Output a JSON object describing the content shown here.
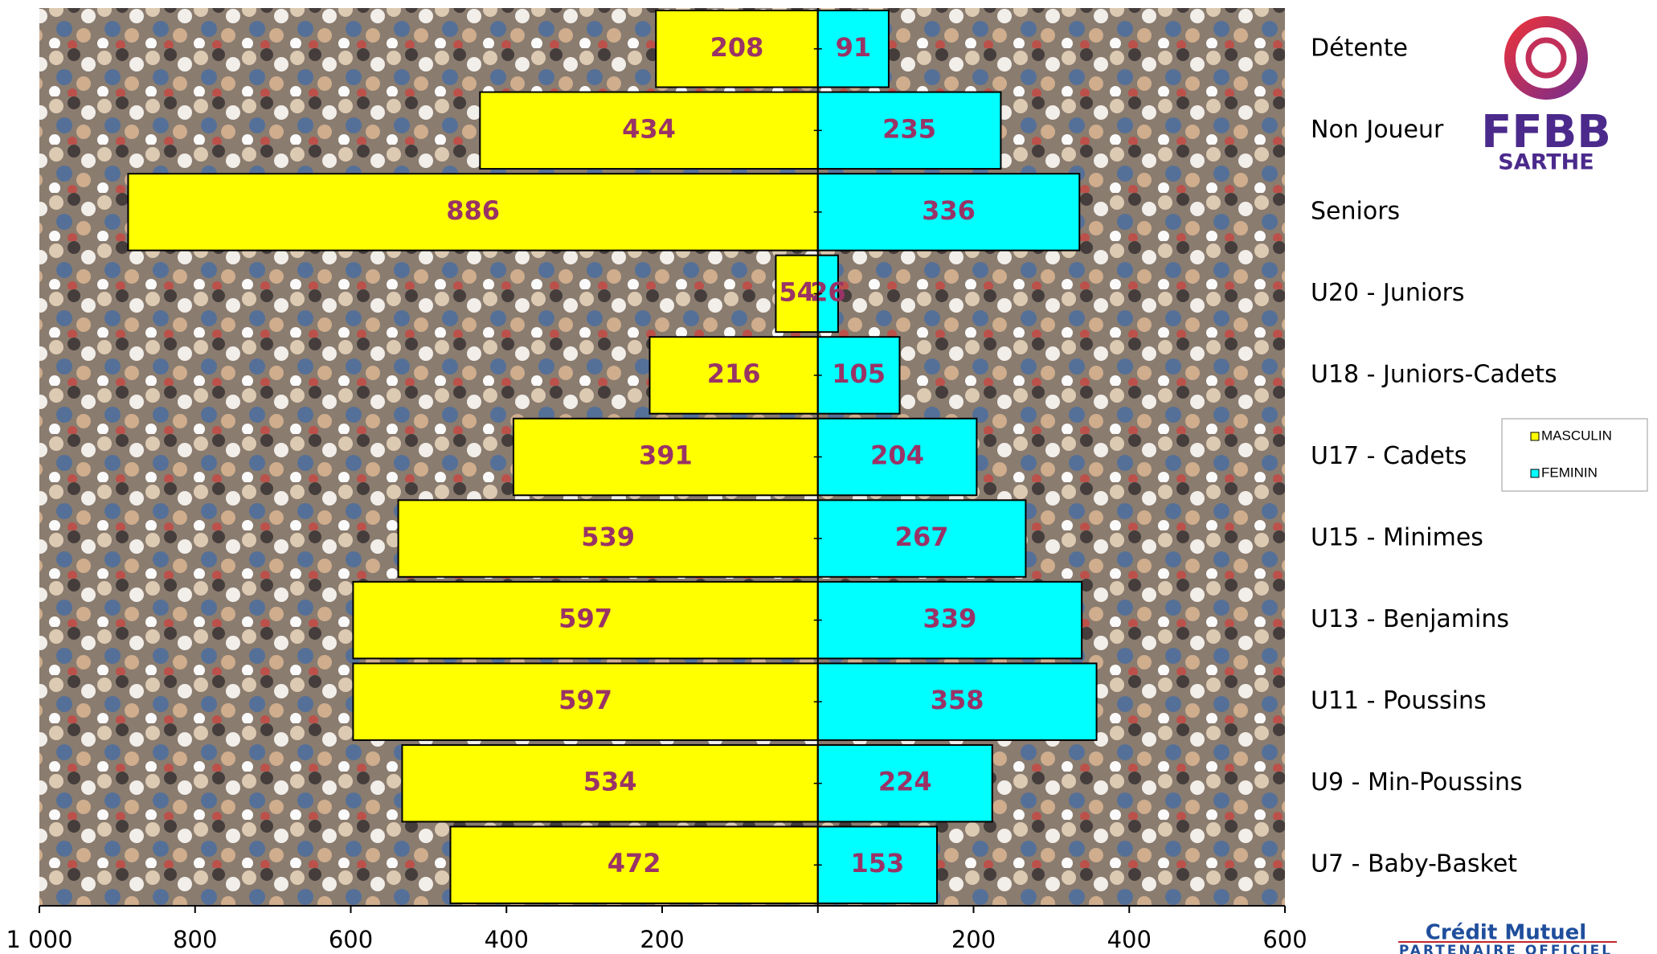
{
  "chart_data": {
    "type": "bar",
    "orientation": "butterfly",
    "categories": [
      "Détente",
      "Non Joueur",
      "Seniors",
      "U20 - Juniors",
      "U18 - Juniors-Cadets",
      "U17 - Cadets",
      "U15 - Minimes",
      "U13 - Benjamins",
      "U11 - Poussins",
      "U9 - Min-Poussins",
      "U7 - Baby-Basket"
    ],
    "series": [
      {
        "name": "MASCULIN",
        "color": "#ffff00",
        "values": [
          208,
          434,
          886,
          54,
          216,
          391,
          539,
          597,
          597,
          534,
          472
        ]
      },
      {
        "name": "FEMININ",
        "color": "#00ffff",
        "values": [
          91,
          235,
          336,
          26,
          105,
          204,
          267,
          339,
          358,
          224,
          153
        ]
      }
    ],
    "xlim": [
      -1000,
      600
    ],
    "xticks": [
      {
        "value": -1000,
        "label": "1 000"
      },
      {
        "value": -800,
        "label": "800"
      },
      {
        "value": -600,
        "label": "600"
      },
      {
        "value": -400,
        "label": "400"
      },
      {
        "value": -200,
        "label": "200"
      },
      200,
      400,
      600
    ],
    "legend": "right"
  },
  "branding": {
    "logo": "FFBB",
    "region": "SARTHE",
    "sponsor": "Crédit Mutuel",
    "sponsor_tagline": "PARTENAIRE OFFICIEL"
  }
}
